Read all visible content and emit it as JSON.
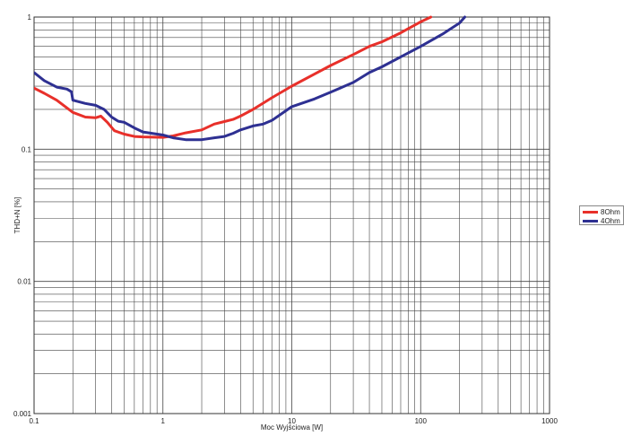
{
  "chart_data": {
    "type": "line",
    "xlabel": "Moc Wyjściowa [W]",
    "ylabel": "THD+N [%]",
    "xscale": "log",
    "yscale": "log",
    "xlim": [
      0.1,
      1000
    ],
    "ylim": [
      0.001,
      1
    ],
    "grid": true,
    "legend_position": "right",
    "x_ticks": [
      "0.1",
      "1",
      "10",
      "100",
      "1000"
    ],
    "y_ticks": [
      "0.001",
      "0.01",
      "0.1",
      "1"
    ],
    "series": [
      {
        "name": "8Ohm",
        "color": "#e8302a",
        "points": [
          [
            0.1,
            0.29
          ],
          [
            0.12,
            0.265
          ],
          [
            0.15,
            0.235
          ],
          [
            0.2,
            0.19
          ],
          [
            0.25,
            0.175
          ],
          [
            0.3,
            0.173
          ],
          [
            0.33,
            0.178
          ],
          [
            0.37,
            0.16
          ],
          [
            0.42,
            0.138
          ],
          [
            0.5,
            0.13
          ],
          [
            0.6,
            0.125
          ],
          [
            0.7,
            0.124
          ],
          [
            1.0,
            0.123
          ],
          [
            1.2,
            0.126
          ],
          [
            1.5,
            0.133
          ],
          [
            2.0,
            0.14
          ],
          [
            2.5,
            0.155
          ],
          [
            3.0,
            0.162
          ],
          [
            3.5,
            0.168
          ],
          [
            4.0,
            0.178
          ],
          [
            5.0,
            0.2
          ],
          [
            7.0,
            0.245
          ],
          [
            10,
            0.3
          ],
          [
            15,
            0.37
          ],
          [
            20,
            0.43
          ],
          [
            30,
            0.52
          ],
          [
            40,
            0.6
          ],
          [
            50,
            0.65
          ],
          [
            70,
            0.76
          ],
          [
            100,
            0.92
          ],
          [
            120,
            1.0
          ]
        ]
      },
      {
        "name": "4Ohm",
        "color": "#2e3092",
        "points": [
          [
            0.1,
            0.38
          ],
          [
            0.12,
            0.33
          ],
          [
            0.15,
            0.295
          ],
          [
            0.18,
            0.285
          ],
          [
            0.195,
            0.272
          ],
          [
            0.2,
            0.235
          ],
          [
            0.25,
            0.222
          ],
          [
            0.3,
            0.215
          ],
          [
            0.35,
            0.2
          ],
          [
            0.4,
            0.175
          ],
          [
            0.45,
            0.163
          ],
          [
            0.5,
            0.16
          ],
          [
            0.6,
            0.145
          ],
          [
            0.7,
            0.135
          ],
          [
            1.0,
            0.128
          ],
          [
            1.2,
            0.122
          ],
          [
            1.5,
            0.118
          ],
          [
            2.0,
            0.118
          ],
          [
            2.5,
            0.122
          ],
          [
            3.0,
            0.125
          ],
          [
            3.5,
            0.132
          ],
          [
            4.0,
            0.14
          ],
          [
            5.0,
            0.15
          ],
          [
            6.0,
            0.155
          ],
          [
            7.0,
            0.165
          ],
          [
            10,
            0.21
          ],
          [
            15,
            0.24
          ],
          [
            20,
            0.27
          ],
          [
            30,
            0.32
          ],
          [
            40,
            0.38
          ],
          [
            50,
            0.42
          ],
          [
            70,
            0.5
          ],
          [
            100,
            0.6
          ],
          [
            150,
            0.75
          ],
          [
            200,
            0.9
          ],
          [
            220,
            1.0
          ]
        ]
      }
    ]
  }
}
